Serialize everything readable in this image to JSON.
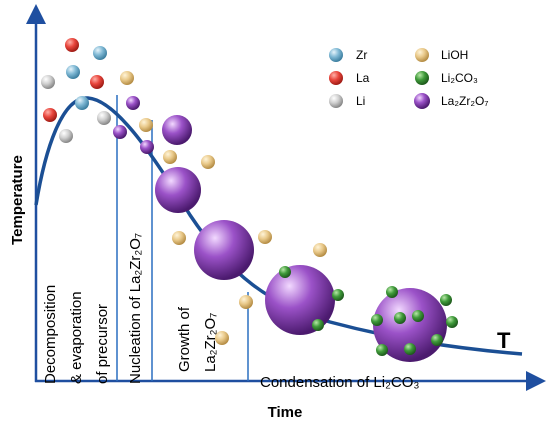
{
  "axes": {
    "y_label": "Temperature",
    "x_label": "Time"
  },
  "curve_label": "T",
  "legend": [
    {
      "label": "Zr"
    },
    {
      "label": "La"
    },
    {
      "label": "Li"
    },
    {
      "label": "LiOH"
    },
    {
      "label": "Li₂CO₃"
    },
    {
      "label": "La₂Zr₂O₇"
    }
  ],
  "stages": [
    {
      "lines": [
        "Decomposition",
        "& evaporation",
        "of precursor"
      ]
    },
    {
      "lines": [
        "Nucleation of La₂Zr₂O₇"
      ]
    },
    {
      "lines": [
        "Growth of",
        "La₂Zr₂O₇"
      ]
    },
    {
      "lines": [
        "Condensation of Li₂CO₃"
      ]
    }
  ]
}
